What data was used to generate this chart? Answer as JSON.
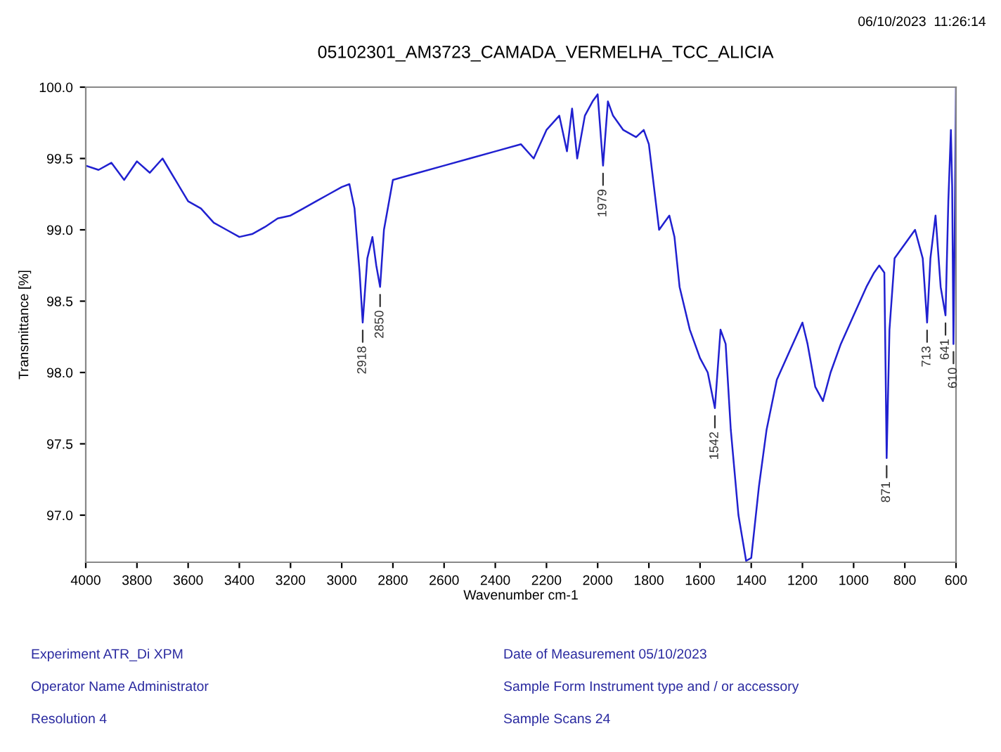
{
  "chart_data": {
    "type": "line",
    "title": "05102301_AM3723_CAMADA_VERMELHA_TCC_ALICIA",
    "subtitle": "06/10/2023  11:26:14",
    "xlabel": "Wavenumber cm-1",
    "ylabel": "Transmittance [%]",
    "x": [
      4000,
      3950,
      3900,
      3850,
      3800,
      3750,
      3700,
      3650,
      3600,
      3550,
      3500,
      3450,
      3400,
      3350,
      3300,
      3250,
      3200,
      3150,
      3100,
      3050,
      3000,
      2970,
      2950,
      2930,
      2918,
      2900,
      2880,
      2865,
      2850,
      2835,
      2800,
      2700,
      2600,
      2500,
      2400,
      2300,
      2250,
      2200,
      2150,
      2120,
      2100,
      2080,
      2050,
      2020,
      2000,
      1979,
      1960,
      1940,
      1900,
      1850,
      1820,
      1800,
      1780,
      1760,
      1740,
      1720,
      1700,
      1680,
      1640,
      1600,
      1570,
      1542,
      1520,
      1500,
      1480,
      1450,
      1420,
      1400,
      1370,
      1340,
      1300,
      1250,
      1200,
      1180,
      1150,
      1120,
      1090,
      1050,
      1000,
      950,
      920,
      900,
      880,
      875,
      871,
      860,
      840,
      800,
      760,
      730,
      713,
      700,
      680,
      660,
      641,
      630,
      620,
      615,
      610,
      605,
      600
    ],
    "series": [
      {
        "color": "#2020d0",
        "values": [
          99.45,
          99.42,
          99.47,
          99.35,
          99.48,
          99.4,
          99.5,
          99.35,
          99.2,
          99.15,
          99.05,
          99.0,
          98.95,
          98.97,
          99.02,
          99.08,
          99.1,
          99.15,
          99.2,
          99.25,
          99.3,
          99.32,
          99.15,
          98.7,
          98.35,
          98.8,
          98.95,
          98.75,
          98.6,
          99.0,
          99.35,
          99.4,
          99.45,
          99.5,
          99.55,
          99.6,
          99.5,
          99.7,
          99.8,
          99.55,
          99.85,
          99.5,
          99.8,
          99.9,
          99.95,
          99.45,
          99.9,
          99.8,
          99.7,
          99.65,
          99.7,
          99.6,
          99.3,
          99.0,
          99.05,
          99.1,
          98.95,
          98.6,
          98.3,
          98.1,
          98.0,
          97.75,
          98.3,
          98.2,
          97.6,
          97.0,
          96.68,
          96.7,
          97.2,
          97.6,
          97.95,
          98.15,
          98.35,
          98.2,
          97.9,
          97.8,
          98.0,
          98.2,
          98.4,
          98.6,
          98.7,
          98.75,
          98.7,
          98.0,
          97.4,
          98.3,
          98.8,
          98.9,
          99.0,
          98.8,
          98.35,
          98.8,
          99.1,
          98.6,
          98.4,
          99.2,
          99.7,
          99.3,
          98.2,
          99.0,
          100.0
        ]
      }
    ],
    "xlim": [
      4000,
      600
    ],
    "xticks": [
      4000,
      3800,
      3600,
      3400,
      3200,
      3000,
      2800,
      2600,
      2400,
      2200,
      2000,
      1800,
      1600,
      1400,
      1200,
      1000,
      800,
      600
    ],
    "ylim": [
      96.67,
      100.0
    ],
    "yticks": [
      {
        "value": 97.0,
        "label": "97.0"
      },
      {
        "value": 97.5,
        "label": "97.5"
      },
      {
        "value": 98.0,
        "label": "98.0"
      },
      {
        "value": 98.5,
        "label": "98.5"
      },
      {
        "value": 99.0,
        "label": "99.0"
      },
      {
        "value": 99.5,
        "label": "99.5"
      },
      {
        "value": 100.0,
        "label": "100.0"
      }
    ],
    "grid": false,
    "legend": false,
    "marker": "none",
    "line_style": "solid",
    "annotations": [
      {
        "text": "2918",
        "x": 2918,
        "y": 98.35
      },
      {
        "text": "2850",
        "x": 2850,
        "y": 98.6
      },
      {
        "text": "1979",
        "x": 1979,
        "y": 99.45
      },
      {
        "text": "1542",
        "x": 1542,
        "y": 97.75
      },
      {
        "text": "871",
        "x": 871,
        "y": 97.4
      },
      {
        "text": "713",
        "x": 713,
        "y": 98.35
      },
      {
        "text": "641",
        "x": 641,
        "y": 98.4
      },
      {
        "text": "610",
        "x": 610,
        "y": 98.2
      },
      "Experiment ATR_Di XPM",
      "Operator Name Administrator",
      "Resolution 4",
      "Date of Measurement 05/10/2023",
      "Sample Form Instrument type and / or accessory",
      "Sample Scans 24"
    ]
  }
}
